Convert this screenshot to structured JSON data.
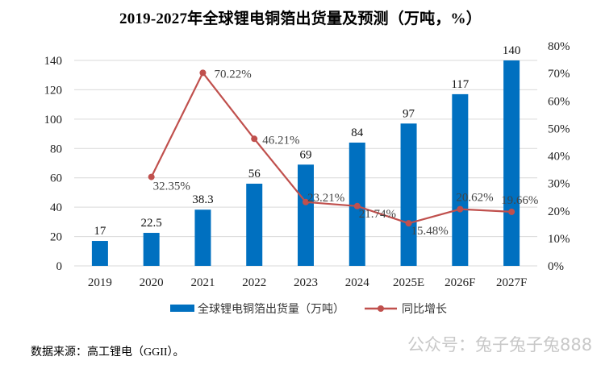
{
  "chart_data": {
    "type": "bar",
    "title": "2019-2027年全球锂电铜箔出货量及预测（万吨，%）",
    "categories": [
      "2019",
      "2020",
      "2021",
      "2022",
      "2023",
      "2024",
      "2025E",
      "2026F",
      "2027F"
    ],
    "series": [
      {
        "name": "全球锂电铜箔出货量（万吨）",
        "type": "bar",
        "axis": "left",
        "color": "#0070C0",
        "values": [
          17,
          22.5,
          38.3,
          56,
          69,
          84,
          97,
          117,
          140
        ],
        "labels": [
          "17",
          "22.5",
          "38.3",
          "56",
          "69",
          "84",
          "97",
          "117",
          "140"
        ]
      },
      {
        "name": "同比增长",
        "type": "line",
        "axis": "right",
        "color": "#C0504D",
        "x_start_index": 1,
        "values": [
          32.35,
          70.22,
          46.21,
          23.21,
          21.74,
          15.48,
          20.62,
          19.66
        ],
        "labels": [
          "32.35%",
          "70.22%",
          "46.21%",
          "23.21%",
          "21.74%",
          "15.48%",
          "20.62%",
          "19.66%"
        ]
      }
    ],
    "y_left": {
      "range": [
        0,
        140
      ],
      "ticks": [
        "0",
        "20",
        "40",
        "60",
        "80",
        "100",
        "120",
        "140"
      ]
    },
    "y_right": {
      "range": [
        0,
        80
      ],
      "ticks": [
        "0%",
        "10%",
        "20%",
        "30%",
        "40%",
        "50%",
        "60%",
        "70%",
        "80%"
      ]
    },
    "grid": true,
    "legend": "bottom",
    "xlabel": "",
    "ylabel": ""
  },
  "footer": {
    "source": "数据来源：高工锂电（GGII）。",
    "watermark": "公众号：兔子兔子兔888"
  }
}
